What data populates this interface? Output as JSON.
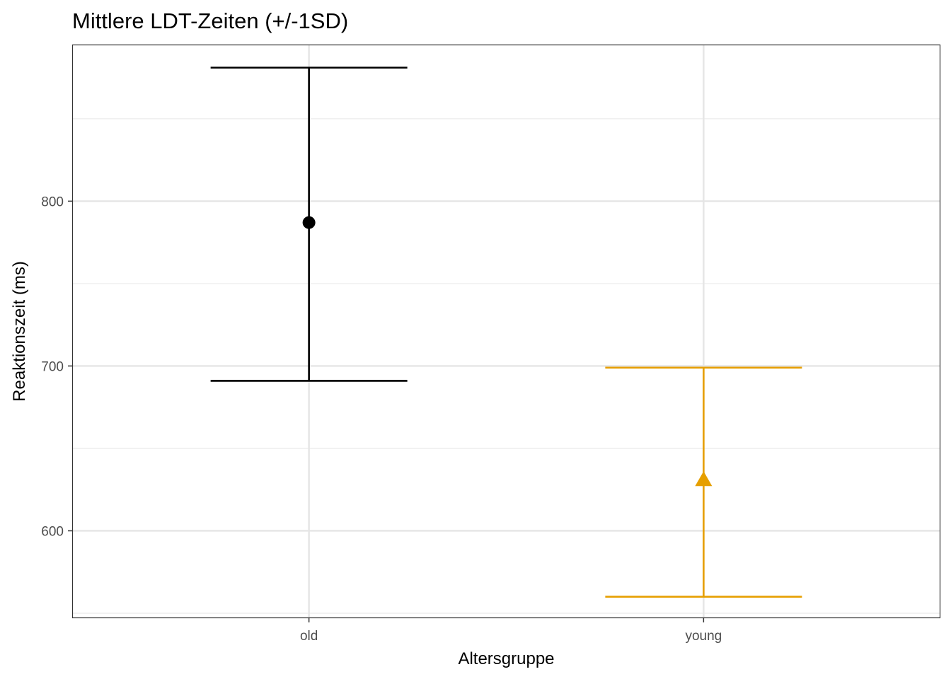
{
  "chart_data": {
    "type": "errorbar",
    "title": "Mittlere LDT-Zeiten (+/-1SD)",
    "xlabel": "Altersgruppe",
    "ylabel": "Reaktionszeit (ms)",
    "categories": [
      "old",
      "young"
    ],
    "ylim": [
      547,
      895
    ],
    "y_ticks": [
      600,
      700,
      800
    ],
    "y_minor_ticks": [
      550,
      650,
      750,
      850
    ],
    "grid": true,
    "series": [
      {
        "category": "old",
        "mean": 787,
        "lower": 691,
        "upper": 881,
        "shape": "circle",
        "color": "#000000"
      },
      {
        "category": "young",
        "mean": 631,
        "lower": 560,
        "upper": 699,
        "shape": "triangle",
        "color": "#E69F00"
      }
    ]
  }
}
